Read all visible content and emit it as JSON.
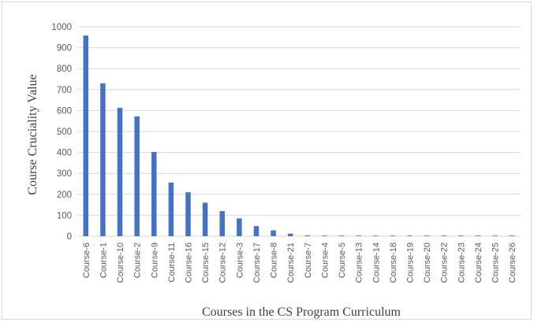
{
  "chart_data": {
    "type": "bar",
    "title": "",
    "xlabel": "Courses in the CS Program Curriculum",
    "ylabel": "Course Cruciality Value",
    "ylim": [
      0,
      1000
    ],
    "yticks": [
      0,
      100,
      200,
      300,
      400,
      500,
      600,
      700,
      800,
      900,
      1000
    ],
    "grid": true,
    "bar_color": "#4472c4",
    "categories": [
      "Course-6",
      "Course-1",
      "Course-10",
      "Course-2",
      "Course-9",
      "Course-11",
      "Course-16",
      "Course-15",
      "Course-12",
      "Course-3",
      "Course-17",
      "Course-8",
      "Course-21",
      "Course-7",
      "Course-4",
      "Course-5",
      "Course-13",
      "Course-14",
      "Course-18",
      "Course-19",
      "Course-20",
      "Course-22",
      "Course-23",
      "Course-24",
      "Course-25",
      "Course-26"
    ],
    "values": [
      958,
      730,
      613,
      572,
      402,
      256,
      210,
      160,
      120,
      85,
      48,
      28,
      12,
      4,
      3,
      3,
      3,
      3,
      3,
      3,
      3,
      3,
      3,
      3,
      3,
      3
    ]
  }
}
